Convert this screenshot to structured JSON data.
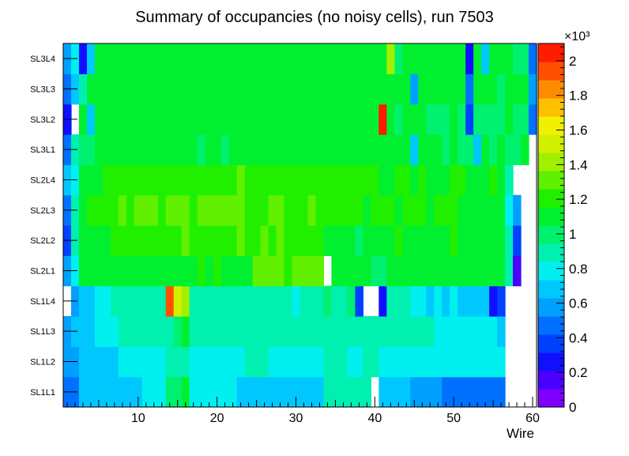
{
  "chart_data": {
    "type": "heatmap",
    "title": "Summary of occupancies (no noisy cells), run 7503",
    "xlabel": "Wire",
    "ylabel": "",
    "x_range": [
      0.5,
      60.5
    ],
    "x_ticks": [
      "10",
      "20",
      "30",
      "40",
      "50",
      "60"
    ],
    "y_categories": [
      "SL1L1",
      "SL1L2",
      "SL1L3",
      "SL1L4",
      "SL2L1",
      "SL2L2",
      "SL2L3",
      "SL2L4",
      "SL3L1",
      "SL3L2",
      "SL3L3",
      "SL3L4"
    ],
    "z_range": [
      0,
      2100
    ],
    "z_exponent_label": "×10³",
    "z_ticks": [
      "0",
      "0.2",
      "0.4",
      "0.6",
      "0.8",
      "1",
      "1.2",
      "1.4",
      "1.6",
      "1.8",
      "2"
    ],
    "palette": [
      "#7d00ff",
      "#4b00ff",
      "#1010ff",
      "#0040ff",
      "#0070ff",
      "#00a0ff",
      "#00c8ff",
      "#00f0f0",
      "#00f0b0",
      "#00f070",
      "#00f030",
      "#20f000",
      "#60f000",
      "#a0f000",
      "#d0f000",
      "#f0f000",
      "#ffc000",
      "#ff8c00",
      "#ff5000",
      "#ff1c00"
    ],
    "rows": [
      {
        "layer": "SL1L1",
        "values": [
          500,
          500,
          650,
          650,
          650,
          650,
          650,
          650,
          700,
          700,
          750,
          750,
          750,
          1000,
          1000,
          1050,
          750,
          750,
          750,
          750,
          750,
          750,
          700,
          700,
          700,
          700,
          650,
          650,
          650,
          650,
          700,
          700,
          650,
          850,
          850,
          850,
          900,
          900,
          900,
          null,
          650,
          650,
          650,
          650,
          600,
          600,
          550,
          550,
          500,
          500,
          500,
          500,
          450,
          450,
          450,
          450,
          null,
          null,
          null,
          null
        ]
      },
      {
        "layer": "SL1L2",
        "values": [
          550,
          550,
          650,
          650,
          700,
          700,
          700,
          750,
          750,
          750,
          750,
          750,
          800,
          900,
          850,
          850,
          800,
          800,
          800,
          800,
          800,
          800,
          800,
          850,
          850,
          850,
          800,
          800,
          800,
          800,
          800,
          800,
          800,
          850,
          900,
          900,
          800,
          800,
          850,
          850,
          800,
          800,
          800,
          800,
          750,
          750,
          750,
          750,
          750,
          750,
          800,
          750,
          750,
          750,
          750,
          750,
          null,
          null,
          null,
          null
        ]
      },
      {
        "layer": "SL1L3",
        "values": [
          600,
          650,
          700,
          700,
          800,
          800,
          800,
          850,
          850,
          850,
          850,
          850,
          850,
          900,
          1000,
          1050,
          850,
          850,
          850,
          850,
          850,
          900,
          900,
          850,
          850,
          850,
          850,
          850,
          850,
          850,
          850,
          850,
          850,
          900,
          900,
          900,
          900,
          900,
          900,
          900,
          850,
          850,
          850,
          850,
          850,
          850,
          850,
          750,
          750,
          750,
          750,
          750,
          750,
          750,
          750,
          700,
          null,
          null,
          null,
          null
        ]
      },
      {
        "layer": "SL1L4",
        "values": [
          null,
          550,
          650,
          700,
          750,
          750,
          850,
          850,
          850,
          850,
          850,
          850,
          850,
          1950,
          1500,
          1400,
          850,
          850,
          850,
          850,
          900,
          900,
          850,
          900,
          900,
          900,
          850,
          850,
          850,
          800,
          850,
          850,
          900,
          950,
          900,
          900,
          950,
          350,
          null,
          null,
          250,
          900,
          850,
          850,
          800,
          800,
          700,
          750,
          700,
          750,
          700,
          650,
          700,
          650,
          250,
          400,
          null,
          null,
          null,
          null
        ]
      },
      {
        "layer": "SL2L1",
        "values": [
          600,
          800,
          1100,
          1050,
          1100,
          1100,
          1100,
          1100,
          1100,
          1150,
          1100,
          1100,
          1150,
          1050,
          1100,
          1100,
          1100,
          1200,
          1100,
          1200,
          1150,
          1150,
          1150,
          1100,
          1350,
          1350,
          1350,
          1300,
          1250,
          1300,
          1350,
          1350,
          1300,
          null,
          1050,
          1050,
          1100,
          1050,
          1050,
          1000,
          1000,
          1050,
          1050,
          1050,
          1100,
          1050,
          1050,
          1100,
          1050,
          1050,
          1050,
          1050,
          1050,
          1100,
          1050,
          1050,
          850,
          200,
          null,
          null
        ]
      },
      {
        "layer": "SL2L2",
        "values": [
          400,
          850,
          1100,
          1150,
          1150,
          1150,
          1200,
          1200,
          1250,
          1250,
          1250,
          1250,
          1200,
          1200,
          1250,
          1300,
          1250,
          1250,
          1250,
          1250,
          1200,
          1250,
          1300,
          1250,
          1250,
          1300,
          1250,
          1300,
          1250,
          1250,
          1250,
          1250,
          1250,
          1150,
          1100,
          1150,
          1100,
          1000,
          1050,
          1100,
          1100,
          1150,
          1200,
          1150,
          1150,
          1100,
          1100,
          1100,
          1150,
          1200,
          1100,
          1150,
          1100,
          1100,
          1100,
          1050,
          850,
          400,
          null,
          null
        ]
      },
      {
        "layer": "SL2L3",
        "values": [
          450,
          850,
          1150,
          1200,
          1200,
          1250,
          1250,
          1300,
          1250,
          1300,
          1300,
          1300,
          1250,
          1300,
          1300,
          1300,
          1250,
          1300,
          1300,
          1350,
          1300,
          1300,
          1300,
          1250,
          1250,
          1250,
          1300,
          1300,
          1250,
          1250,
          1250,
          1300,
          1250,
          1200,
          1200,
          1250,
          1200,
          1200,
          1150,
          1200,
          1200,
          1200,
          1150,
          1200,
          1200,
          1200,
          1150,
          1200,
          1200,
          1200,
          1150,
          1150,
          1150,
          1150,
          1150,
          1150,
          800,
          600,
          null,
          null
        ]
      },
      {
        "layer": "SL2L4",
        "values": [
          700,
          800,
          1150,
          1150,
          1150,
          1200,
          1200,
          1200,
          1200,
          1250,
          1200,
          1250,
          1200,
          1200,
          1250,
          1250,
          1250,
          1250,
          1200,
          1200,
          1250,
          1250,
          1300,
          1250,
          1250,
          1250,
          1250,
          1250,
          1250,
          1250,
          1200,
          1200,
          1250,
          1250,
          1200,
          1200,
          1250,
          1200,
          1200,
          1200,
          1150,
          1150,
          1200,
          1200,
          1150,
          1200,
          1150,
          1150,
          1150,
          1200,
          1200,
          1100,
          1150,
          1150,
          1200,
          1150,
          850,
          null,
          null,
          null
        ]
      },
      {
        "layer": "SL3L1",
        "values": [
          500,
          850,
          950,
          1000,
          1050,
          1050,
          1100,
          1050,
          1050,
          1100,
          1050,
          1100,
          1100,
          1050,
          1050,
          1050,
          1050,
          1000,
          1050,
          1100,
          1000,
          1050,
          1050,
          1050,
          1050,
          1100,
          1100,
          1050,
          1100,
          1100,
          1050,
          1050,
          1050,
          1050,
          1050,
          1050,
          1100,
          1050,
          1050,
          1050,
          1050,
          1100,
          1100,
          1100,
          700,
          1050,
          1050,
          1050,
          1000,
          1050,
          1000,
          1000,
          700,
          1050,
          1000,
          1050,
          1000,
          1000,
          1050,
          null
        ]
      },
      {
        "layer": "SL3L2",
        "values": [
          300,
          null,
          1050,
          700,
          1100,
          1100,
          1100,
          1150,
          1150,
          1150,
          1150,
          1150,
          1100,
          1100,
          1100,
          1100,
          1100,
          1100,
          1100,
          1100,
          1150,
          1150,
          1050,
          1150,
          1050,
          1150,
          1150,
          1100,
          1150,
          1150,
          1150,
          1150,
          1150,
          1100,
          1100,
          1100,
          1100,
          1100,
          1150,
          1150,
          2100,
          1050,
          1000,
          1050,
          1100,
          1050,
          1000,
          1000,
          1000,
          1050,
          1000,
          400,
          1000,
          1000,
          1000,
          950,
          1050,
          1000,
          1000,
          450
        ]
      },
      {
        "layer": "SL3L3",
        "values": [
          450,
          650,
          900,
          1050,
          1100,
          1100,
          1150,
          1150,
          1150,
          1100,
          1100,
          1100,
          1100,
          1150,
          1150,
          1150,
          1100,
          1150,
          1150,
          1100,
          1100,
          1150,
          1100,
          1150,
          1150,
          1150,
          1150,
          1100,
          1150,
          1150,
          1150,
          1150,
          1150,
          1100,
          1150,
          1150,
          1100,
          1150,
          1100,
          1100,
          1150,
          1100,
          1050,
          1100,
          600,
          1100,
          1100,
          1100,
          1050,
          1050,
          1050,
          450,
          1050,
          1050,
          1050,
          1000,
          1100,
          1100,
          1050,
          550
        ]
      },
      {
        "layer": "SL3L4",
        "values": [
          550,
          800,
          300,
          700,
          1100,
          1100,
          1150,
          1150,
          1150,
          1150,
          1150,
          1150,
          1150,
          1100,
          1100,
          1150,
          1100,
          1150,
          1150,
          1100,
          1150,
          1100,
          1150,
          1150,
          1150,
          1150,
          1150,
          1150,
          1100,
          1150,
          1150,
          1150,
          1150,
          1150,
          1150,
          1150,
          1150,
          1100,
          1150,
          1150,
          1150,
          1450,
          1000,
          1050,
          1050,
          1050,
          1050,
          1050,
          1050,
          1050,
          1050,
          300,
          1050,
          700,
          1050,
          1050,
          1050,
          1000,
          950,
          450
        ]
      }
    ]
  }
}
